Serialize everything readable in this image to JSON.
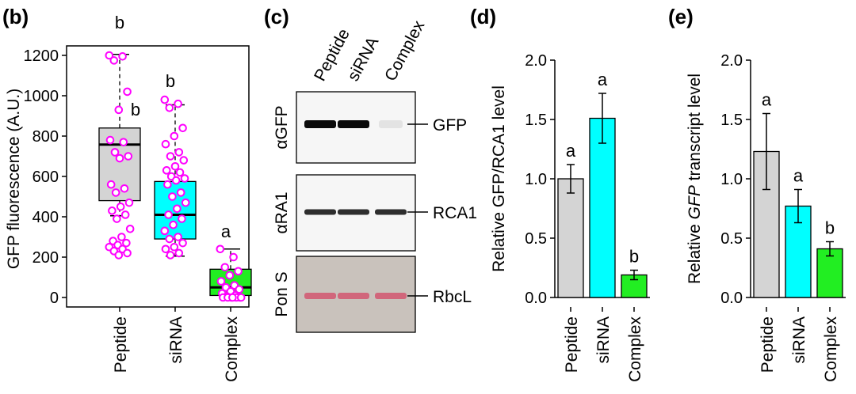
{
  "panels": {
    "b": "(b)",
    "c": "(c)",
    "d": "(d)",
    "e": "(e)"
  },
  "chart_data": [
    {
      "panel": "(b)",
      "type": "box",
      "ylabel": "GFP fluorescence (A.U.)",
      "ylim": [
        0,
        1200
      ],
      "yticks": [
        "0",
        "200",
        "400",
        "600",
        "800",
        "1000",
        "1200"
      ],
      "categories": [
        "Peptide",
        "siRNA",
        "Complex"
      ],
      "colors": [
        "#d4d4d4",
        "#00ffff",
        "#22ee22"
      ],
      "point_color": "#ff00ff",
      "boxes": [
        {
          "label": "Peptide",
          "whisker_low": 405,
          "q1": 480,
          "median": 758,
          "q3": 840,
          "whisker_high": 1205
        },
        {
          "label": "siRNA",
          "whisker_low": 205,
          "q1": 290,
          "median": 410,
          "q3": 575,
          "whisker_high": 955
        },
        {
          "label": "Complex",
          "whisker_low": 0,
          "q1": 10,
          "median": 50,
          "q3": 140,
          "whisker_high": 240
        }
      ],
      "points": [
        [
          1200,
          1195,
          1175,
          1020,
          930,
          780,
          770,
          720,
          700,
          690,
          560,
          540,
          520,
          470,
          450,
          430,
          410,
          390,
          340,
          300,
          280,
          270,
          260,
          250,
          240,
          230,
          220,
          210
        ],
        [
          980,
          960,
          940,
          840,
          800,
          760,
          720,
          700,
          680,
          650,
          630,
          620,
          600,
          590,
          580,
          560,
          520,
          500,
          470,
          440,
          410,
          390,
          360,
          330,
          300,
          290,
          270,
          250,
          240,
          220,
          210
        ],
        [
          240,
          200,
          150,
          130,
          110,
          80,
          60,
          50,
          40,
          30,
          20,
          10,
          5,
          0,
          0,
          0,
          0,
          0,
          0,
          0
        ]
      ],
      "significance": [
        "b",
        "b",
        "a"
      ],
      "extra_letter": "b"
    },
    {
      "panel": "(c)",
      "type": "blot",
      "lanes": [
        "Peptide",
        "siRNA",
        "Complex"
      ],
      "rows": [
        {
          "side_label": "αGFP",
          "band_label": "GFP",
          "intensity": [
            1.0,
            1.0,
            0.08
          ]
        },
        {
          "side_label": "αRA1",
          "band_label": "RCA1",
          "intensity": [
            0.85,
            0.85,
            0.85
          ]
        },
        {
          "side_label": "Pon S",
          "band_label": "RbcL",
          "intensity": [
            0.6,
            0.6,
            0.6
          ]
        }
      ]
    },
    {
      "panel": "(d)",
      "type": "bar",
      "ylabel": "Relative GFP/RCA1 level",
      "ylim": [
        0,
        2.0
      ],
      "yticks": [
        "0.0",
        "0.5",
        "1.0",
        "1.5",
        "2.0"
      ],
      "categories": [
        "Peptide",
        "siRNA",
        "Complex"
      ],
      "values": [
        1.0,
        1.51,
        0.19
      ],
      "errors": [
        0.12,
        0.21,
        0.04
      ],
      "colors": [
        "#d4d4d4",
        "#00ffff",
        "#22ee22"
      ],
      "significance": [
        "a",
        "a",
        "b"
      ]
    },
    {
      "panel": "(e)",
      "type": "bar",
      "ylabel_pre": "Relative ",
      "ylabel_ital": "GFP",
      "ylabel_post": " transcript level",
      "ylim": [
        0,
        2.0
      ],
      "yticks": [
        "0.0",
        "0.5",
        "1.0",
        "1.5",
        "2.0"
      ],
      "categories": [
        "Peptide",
        "siRNA",
        "Complex"
      ],
      "values": [
        1.23,
        0.77,
        0.41
      ],
      "errors": [
        0.32,
        0.14,
        0.06
      ],
      "colors": [
        "#d4d4d4",
        "#00ffff",
        "#22ee22"
      ],
      "significance": [
        "a",
        "a",
        "b"
      ]
    }
  ]
}
